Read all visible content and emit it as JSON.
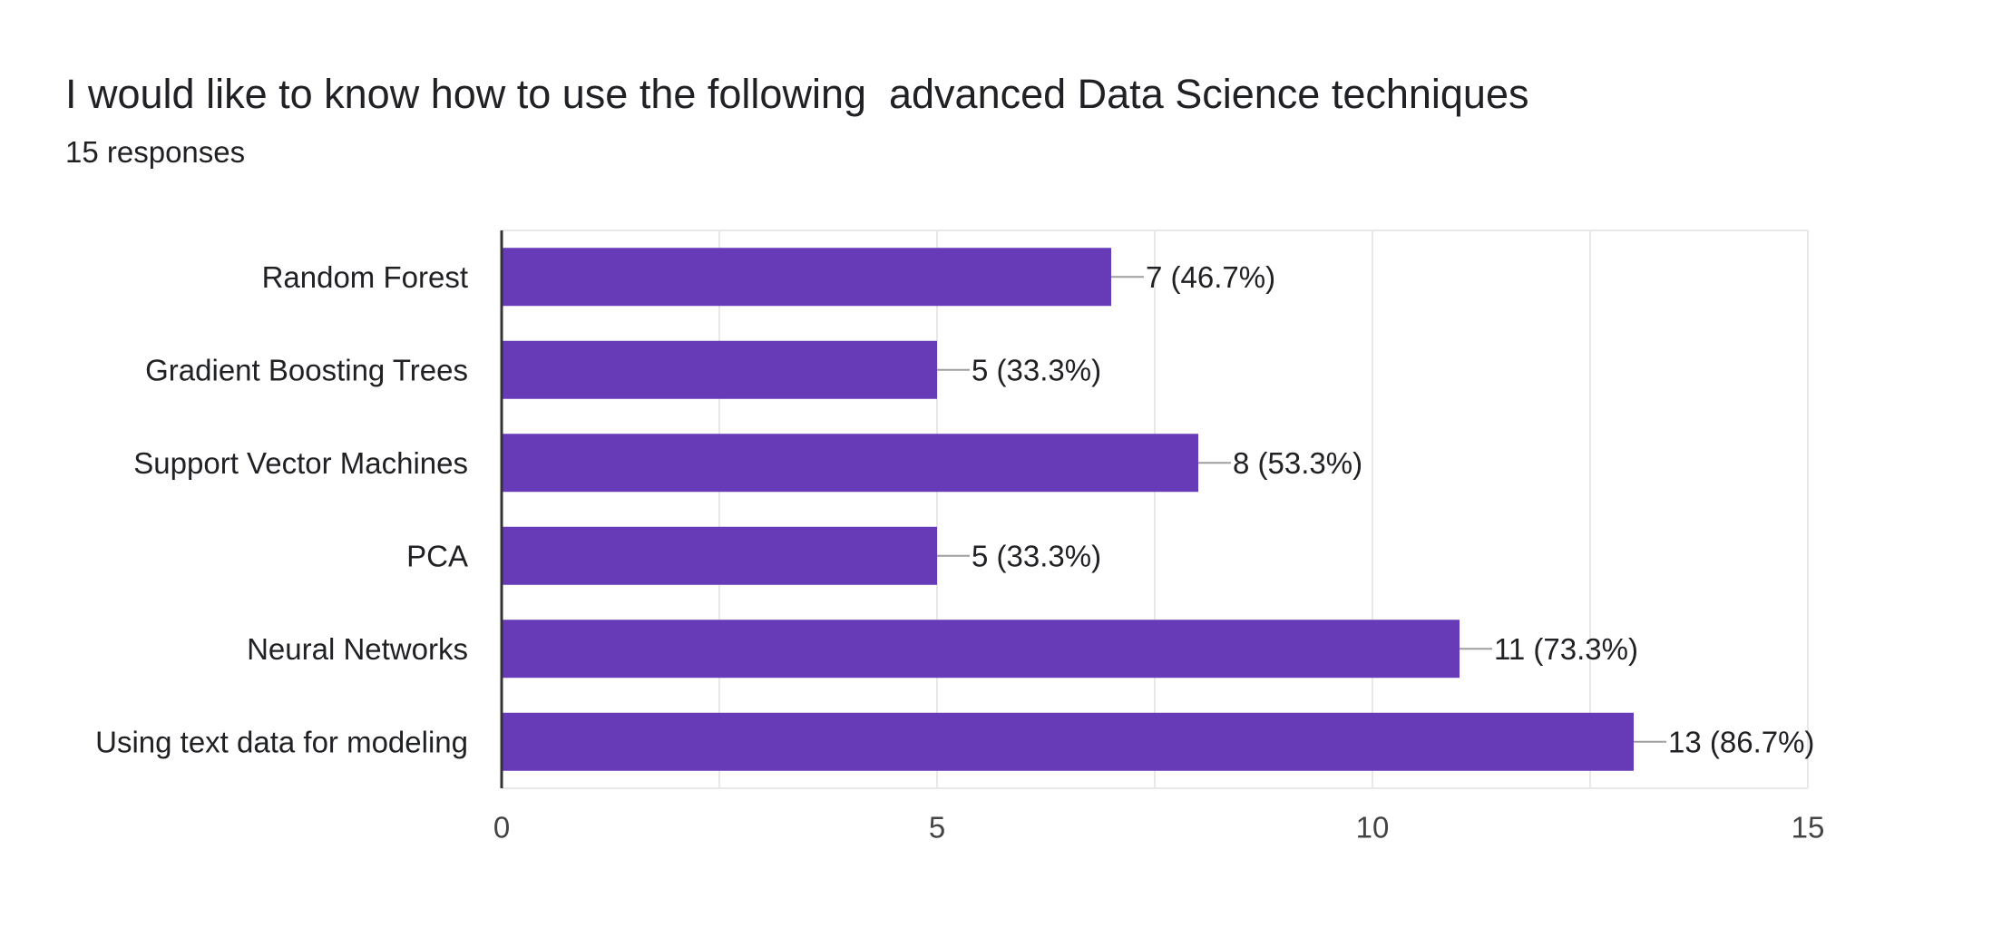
{
  "header": {
    "title": "I would like to know how to use the following  advanced Data Science techniques",
    "responses": "15 responses"
  },
  "colors": {
    "bar": "#673ab7",
    "grid": "#e8e8e8",
    "axis": "#333333",
    "leader": "#9e9e9e",
    "text": "#202124"
  },
  "chart_data": {
    "type": "bar",
    "orientation": "horizontal",
    "categories": [
      "Random Forest",
      "Gradient Boosting Trees",
      "Support Vector Machines",
      "PCA",
      "Neural Networks",
      "Using text data for modeling"
    ],
    "values": [
      7,
      5,
      8,
      5,
      11,
      13
    ],
    "data_labels": [
      "7 (46.7%)",
      "5 (33.3%)",
      "8 (53.3%)",
      "5 (33.3%)",
      "11 (73.3%)",
      "13 (86.7%)"
    ],
    "xlim": [
      0,
      15
    ],
    "x_ticks": [
      0,
      5,
      10,
      15
    ],
    "x_tick_labels": [
      "0",
      "5",
      "10",
      "15"
    ],
    "grid": true,
    "legend": "none"
  }
}
